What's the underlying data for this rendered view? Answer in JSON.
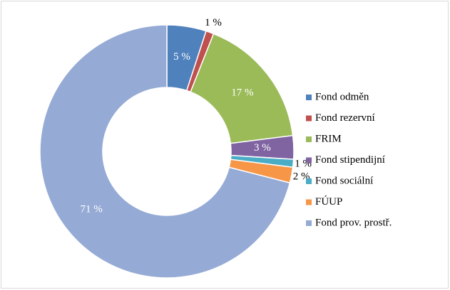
{
  "chart_data": {
    "type": "doughnut",
    "categories": [
      "Fond odměn",
      "Fond rezervní",
      "FRIM",
      "Fond stipendijní",
      "Fond sociální",
      "FÚUP",
      "Fond prov. prostř."
    ],
    "values": [
      5,
      1,
      17,
      3,
      1,
      2,
      71
    ],
    "value_labels": [
      "5 %",
      "1 %",
      "17 %",
      "3 %",
      "1 %",
      "2 %",
      "71 %"
    ],
    "colors": [
      "#4f81bd",
      "#c0504d",
      "#9bbb59",
      "#8064a2",
      "#4bacc6",
      "#f79646",
      "#95abd5"
    ],
    "legend": "right"
  }
}
